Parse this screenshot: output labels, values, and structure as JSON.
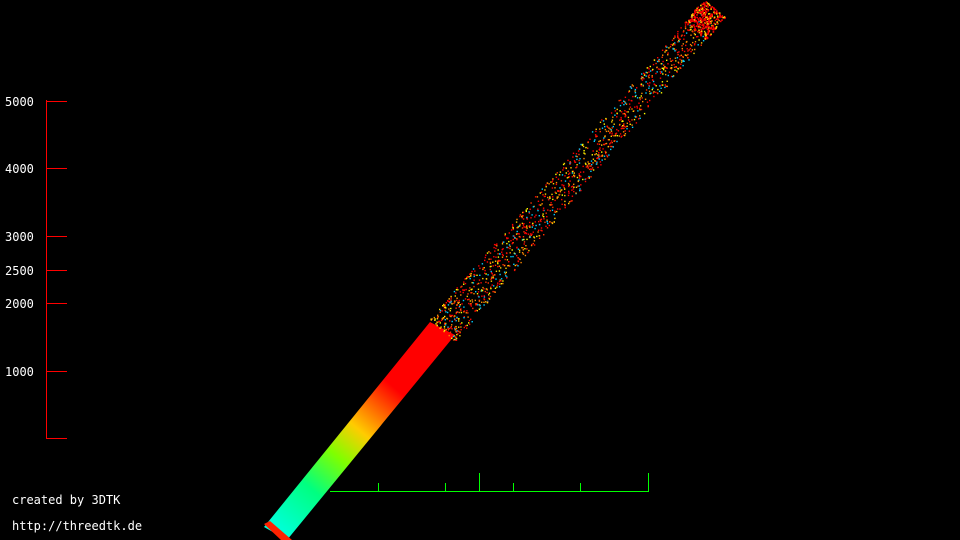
{
  "credits": {
    "line1": "created by 3DTK",
    "line2": "http://threedtk.de"
  },
  "colors": {
    "background": "#000000",
    "vertical_axis": "#ff0000",
    "horizontal_axis": "#00ff00",
    "label_text": "#ffffff",
    "gradient_near": "#00ffdd",
    "gradient_mid": "#00ff00",
    "gradient_warm": "#ffcc00",
    "gradient_far": "#ff0000"
  },
  "vertical_axis": {
    "ticks": [
      {
        "label": "5000",
        "value": 5000
      },
      {
        "label": "4000",
        "value": 4000
      },
      {
        "label": "3000",
        "value": 3000
      },
      {
        "label": "2500",
        "value": 2500
      },
      {
        "label": "2000",
        "value": 2000
      },
      {
        "label": "1000",
        "value": 1000
      },
      {
        "label": "",
        "value": 0
      }
    ]
  },
  "horizontal_axis": {
    "tick_count": 6
  }
}
